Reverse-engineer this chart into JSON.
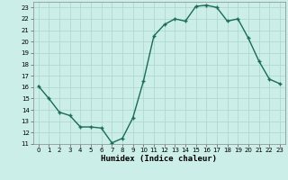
{
  "x": [
    0,
    1,
    2,
    3,
    4,
    5,
    6,
    7,
    8,
    9,
    10,
    11,
    12,
    13,
    14,
    15,
    16,
    17,
    18,
    19,
    20,
    21,
    22,
    23
  ],
  "y": [
    16.1,
    15.0,
    13.8,
    13.5,
    12.5,
    12.5,
    12.4,
    11.1,
    11.5,
    13.3,
    16.5,
    20.5,
    21.5,
    22.0,
    21.8,
    23.1,
    23.2,
    23.0,
    21.8,
    22.0,
    20.3,
    18.3,
    16.7,
    16.3
  ],
  "line_color": "#1a6b5a",
  "marker": "+",
  "marker_size": 3.5,
  "marker_linewidth": 1.0,
  "background_color": "#cceee8",
  "grid_color": "#aad4cc",
  "xlabel": "Humidex (Indice chaleur)",
  "xlim": [
    -0.5,
    23.5
  ],
  "ylim": [
    11,
    23.5
  ],
  "yticks": [
    11,
    12,
    13,
    14,
    15,
    16,
    17,
    18,
    19,
    20,
    21,
    22,
    23
  ],
  "xticks": [
    0,
    1,
    2,
    3,
    4,
    5,
    6,
    7,
    8,
    9,
    10,
    11,
    12,
    13,
    14,
    15,
    16,
    17,
    18,
    19,
    20,
    21,
    22,
    23
  ],
  "tick_fontsize": 5.0,
  "xlabel_fontsize": 6.5,
  "linewidth": 1.0
}
